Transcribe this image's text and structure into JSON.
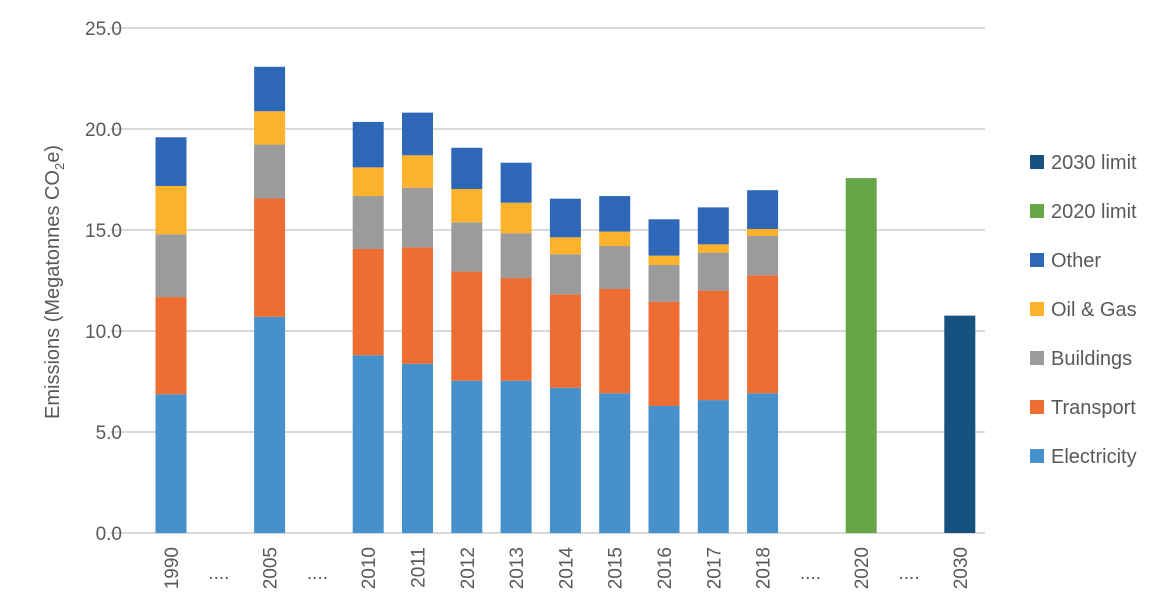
{
  "chart_data": {
    "type": "bar",
    "stacked": true,
    "title": "",
    "xlabel": "",
    "ylabel": "Emissions (Megatonnes CO2e)",
    "ylabel_parts": {
      "main": "Emissions (Megatonnes CO",
      "sub": "2",
      "end": "e)"
    },
    "ylim": [
      0,
      25
    ],
    "yticks": [
      "0.0",
      "5.0",
      "10.0",
      "15.0",
      "20.0",
      "25.0"
    ],
    "ytick_values": [
      0,
      5,
      10,
      15,
      20,
      25
    ],
    "grid": true,
    "legend_position": "right",
    "categories": [
      "1990",
      "....",
      "2005",
      "....",
      "2010",
      "2011",
      "2012",
      "2013",
      "2014",
      "2015",
      "2016",
      "2017",
      "2018",
      "....",
      "2020",
      "....",
      "2030"
    ],
    "series": [
      {
        "name": "Electricity",
        "color": "#4691CC",
        "values": [
          6.87,
          null,
          10.7,
          null,
          8.8,
          8.38,
          7.54,
          7.54,
          7.19,
          6.92,
          6.29,
          6.58,
          6.92,
          null,
          null,
          null,
          null
        ]
      },
      {
        "name": "Transport",
        "color": "#ED6D33",
        "values": [
          4.81,
          null,
          5.86,
          null,
          5.26,
          5.76,
          5.4,
          5.08,
          4.63,
          5.16,
          5.16,
          5.42,
          5.84,
          null,
          null,
          null,
          null
        ]
      },
      {
        "name": "Buildings",
        "color": "#9B9B9B",
        "values": [
          3.11,
          null,
          2.67,
          null,
          2.62,
          2.95,
          2.44,
          2.22,
          1.98,
          2.13,
          1.82,
          1.88,
          1.94,
          null,
          null,
          null,
          null
        ]
      },
      {
        "name": "Oil & Gas",
        "color": "#FDB22B",
        "values": [
          2.39,
          null,
          1.65,
          null,
          1.42,
          1.61,
          1.65,
          1.51,
          0.84,
          0.71,
          0.46,
          0.41,
          0.35,
          null,
          null,
          null,
          null
        ]
      },
      {
        "name": "Other",
        "color": "#2E67B8",
        "values": [
          2.41,
          null,
          2.2,
          null,
          2.25,
          2.11,
          2.04,
          1.98,
          1.91,
          1.76,
          1.8,
          1.83,
          1.92,
          null,
          null,
          null,
          null
        ]
      },
      {
        "name": "2020 limit",
        "color": "#66A647",
        "values": [
          null,
          null,
          null,
          null,
          null,
          null,
          null,
          null,
          null,
          null,
          null,
          null,
          null,
          null,
          17.57,
          null,
          null
        ]
      },
      {
        "name": "2030 limit",
        "color": "#15527F",
        "values": [
          null,
          null,
          null,
          null,
          null,
          null,
          null,
          null,
          null,
          null,
          null,
          null,
          null,
          null,
          null,
          null,
          10.76
        ]
      }
    ],
    "legend_order": [
      "2030 limit",
      "2020 limit",
      "Other",
      "Oil & Gas",
      "Buildings",
      "Transport",
      "Electricity"
    ]
  }
}
